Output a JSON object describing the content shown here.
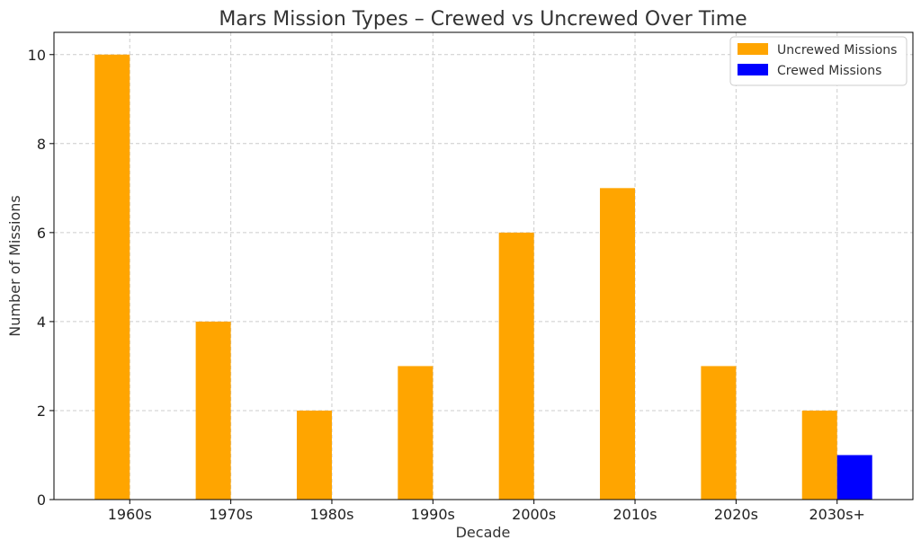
{
  "chart_data": {
    "type": "bar",
    "title": "Mars Mission Types – Crewed vs Uncrewed Over Time",
    "xlabel": "Decade",
    "ylabel": "Number of Missions",
    "categories": [
      "1960s",
      "1970s",
      "1980s",
      "1990s",
      "2000s",
      "2010s",
      "2020s",
      "2030s+"
    ],
    "series": [
      {
        "name": "Uncrewed Missions",
        "color": "#FFA500",
        "values": [
          10,
          4,
          2,
          3,
          6,
          7,
          3,
          2
        ]
      },
      {
        "name": "Crewed Missions",
        "color": "#0000FF",
        "values": [
          0,
          0,
          0,
          0,
          0,
          0,
          0,
          1
        ]
      }
    ],
    "ylim": [
      0,
      10.5
    ],
    "yticks": [
      0,
      2,
      4,
      6,
      8,
      10
    ],
    "grid": true,
    "legend_position": "top-right"
  }
}
